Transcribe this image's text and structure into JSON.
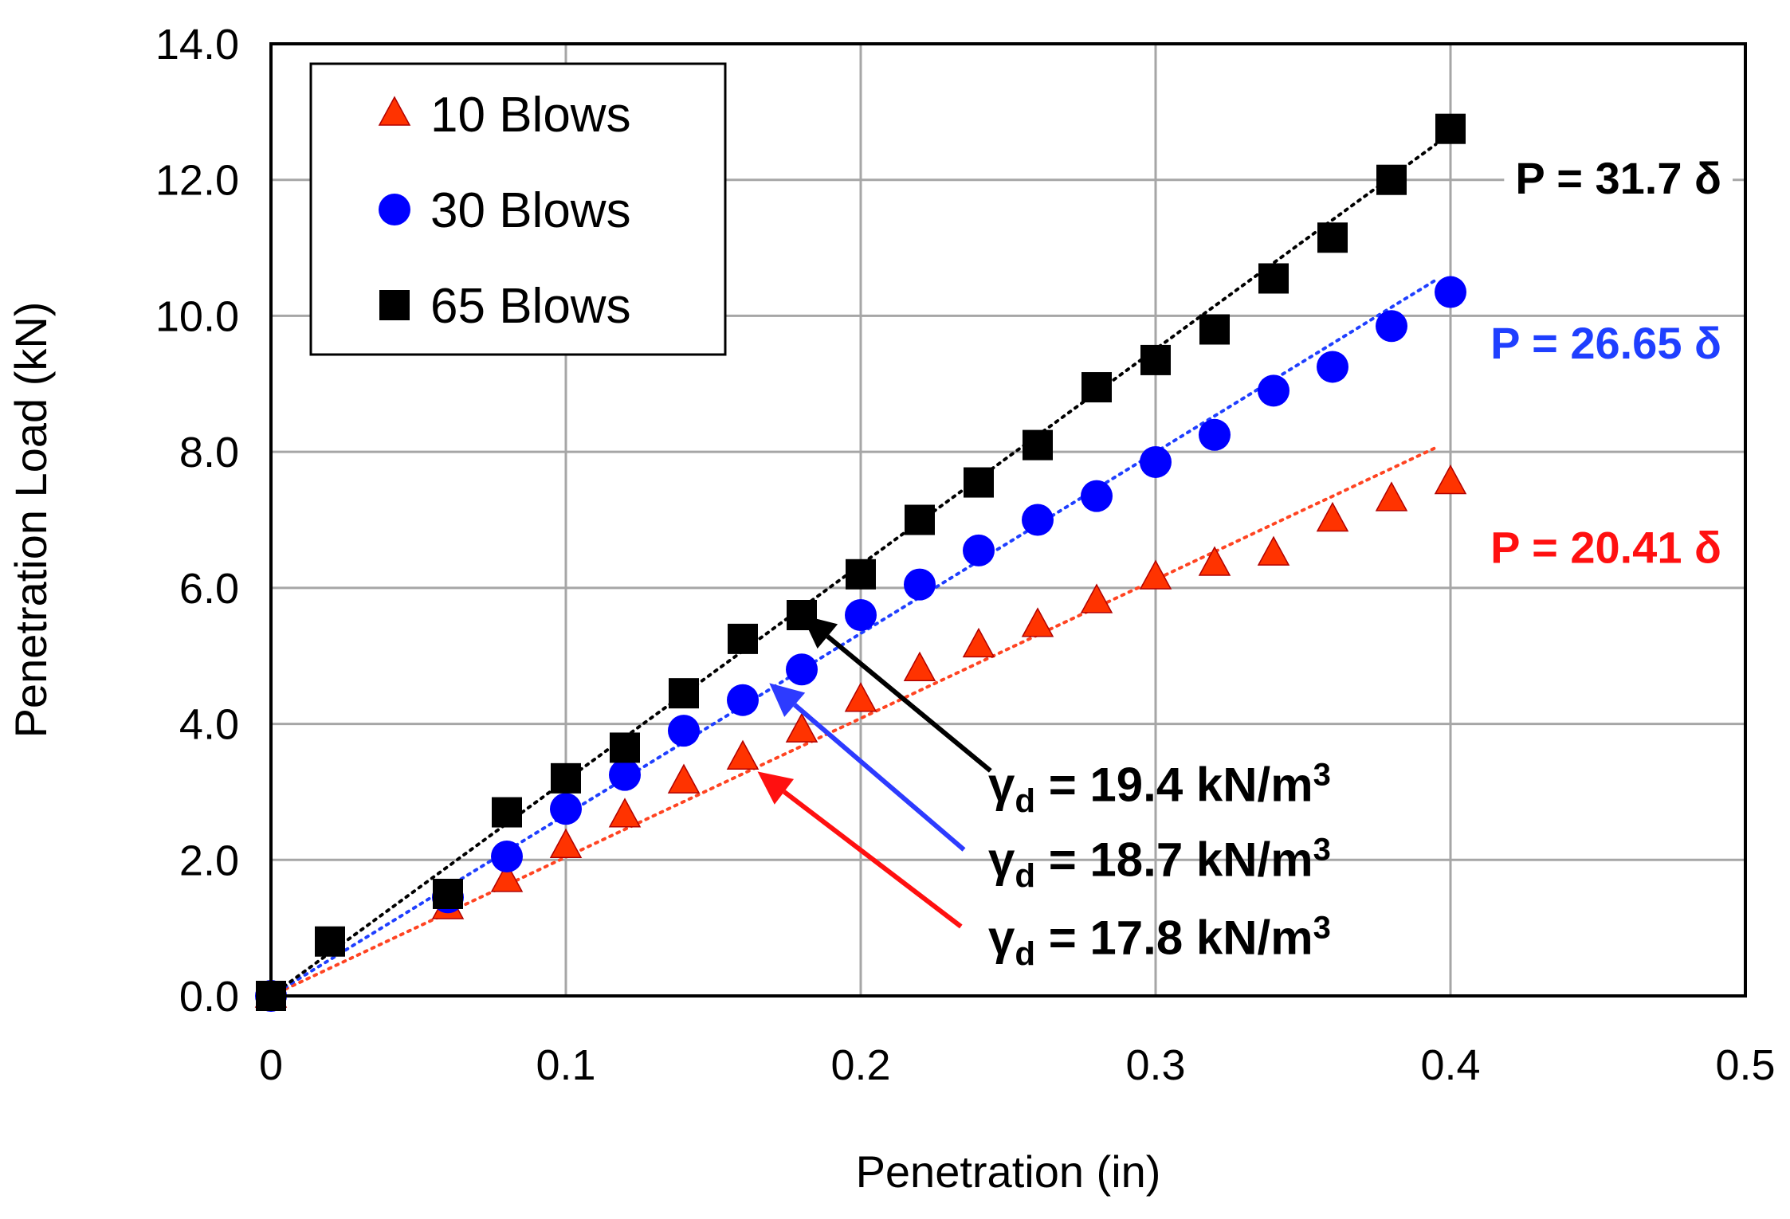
{
  "chart_data": {
    "type": "scatter",
    "title": "",
    "xlabel": "Penetration (in)",
    "ylabel": "Penetration Load (kN)",
    "xlim": [
      0,
      0.5
    ],
    "ylim": [
      0,
      14
    ],
    "grid": true,
    "legend_position": "top-left",
    "x_ticks": [
      0,
      0.1,
      0.2,
      0.3,
      0.4,
      0.5
    ],
    "x_tick_labels": [
      "0",
      "0.1",
      "0.2",
      "0.3",
      "0.4",
      "0.5"
    ],
    "y_ticks": [
      0,
      2,
      4,
      6,
      8,
      10,
      12,
      14
    ],
    "y_tick_labels": [
      "0.0",
      "2.0",
      "4.0",
      "6.0",
      "8.0",
      "10.0",
      "12.0",
      "14.0"
    ],
    "series": [
      {
        "name": "10 Blows",
        "marker": "triangle",
        "color": "#FF3300",
        "trend_color": "#FF4422",
        "trend_slope": 20.41,
        "equation": "P = 20.41 δ",
        "density": "17.8",
        "x": [
          0,
          0.06,
          0.08,
          0.1,
          0.12,
          0.14,
          0.16,
          0.18,
          0.2,
          0.22,
          0.24,
          0.26,
          0.28,
          0.3,
          0.32,
          0.34,
          0.36,
          0.38,
          0.4
        ],
        "y": [
          0,
          1.3,
          1.7,
          2.2,
          2.65,
          3.15,
          3.5,
          3.9,
          4.35,
          4.8,
          5.15,
          5.45,
          5.8,
          6.15,
          6.35,
          6.5,
          7.0,
          7.3,
          7.55
        ]
      },
      {
        "name": "30 Blows",
        "marker": "circle",
        "color": "#0000FF",
        "trend_color": "#1F3FFF",
        "trend_slope": 26.65,
        "equation": "P = 26.65 δ",
        "density": "18.7",
        "x": [
          0,
          0.06,
          0.08,
          0.1,
          0.12,
          0.14,
          0.16,
          0.18,
          0.2,
          0.22,
          0.24,
          0.26,
          0.28,
          0.3,
          0.32,
          0.34,
          0.36,
          0.38,
          0.4
        ],
        "y": [
          0,
          1.45,
          2.05,
          2.75,
          3.25,
          3.9,
          4.35,
          4.8,
          5.6,
          6.05,
          6.55,
          7.0,
          7.35,
          7.85,
          8.25,
          8.9,
          9.25,
          9.85,
          10.35
        ]
      },
      {
        "name": "65 Blows",
        "marker": "square",
        "color": "#000000",
        "trend_color": "#000000",
        "trend_slope": 31.7,
        "equation": "P = 31.7 δ",
        "density": "19.4",
        "x": [
          0,
          0.02,
          0.06,
          0.08,
          0.1,
          0.12,
          0.14,
          0.16,
          0.18,
          0.2,
          0.22,
          0.24,
          0.26,
          0.28,
          0.3,
          0.32,
          0.34,
          0.36,
          0.38,
          0.4
        ],
        "y": [
          0,
          0.8,
          1.5,
          2.7,
          3.2,
          3.65,
          4.45,
          5.25,
          5.6,
          6.2,
          7.0,
          7.55,
          8.1,
          8.95,
          9.35,
          9.8,
          10.55,
          11.15,
          12.0,
          12.75
        ]
      }
    ],
    "annotations": [
      {
        "label": "γd = 19.4 kN/m³",
        "series": "65 Blows",
        "color": "#000000",
        "arrow_from": [
          0.244,
          3.31
        ],
        "arrow_to": [
          0.18,
          5.6
        ]
      },
      {
        "label": "γd = 18.7 kN/m³",
        "series": "30 Blows",
        "color": "#2D3BFF",
        "arrow_from": [
          0.235,
          2.15
        ],
        "arrow_to": [
          0.169,
          4.6
        ]
      },
      {
        "label": "γd = 17.8 kN/m³",
        "series": "10 Blows",
        "color": "#FF1010",
        "arrow_from": [
          0.234,
          1.02
        ],
        "arrow_to": [
          0.165,
          3.3
        ]
      }
    ]
  }
}
